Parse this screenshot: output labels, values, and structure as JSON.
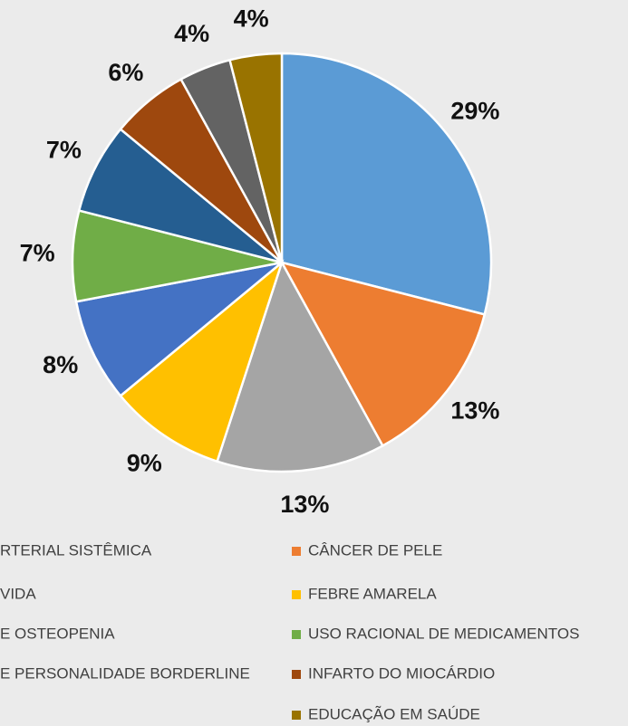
{
  "chart_data": {
    "type": "pie",
    "categories": [
      "RTERIAL SISTÊMICA",
      "CÂNCER DE PELE",
      "VIDA",
      "FEBRE AMARELA",
      "E OSTEOPENIA",
      "USO RACIONAL DE MEDICAMENTOS",
      "E PERSONALIDADE BORDERLINE",
      "INFARTO DO MIOCÁRDIO",
      null,
      "EDUCAÇÃO EM SAÚDE"
    ],
    "values": [
      29,
      13,
      13,
      9,
      8,
      7,
      7,
      6,
      4,
      4
    ],
    "value_labels": [
      "29%",
      "13%",
      "13%",
      "9%",
      "8%",
      "7%",
      "7%",
      "6%",
      "4%",
      "4%"
    ],
    "colors": [
      "#5b9bd5",
      "#ed7d31",
      "#a5a5a5",
      "#ffc000",
      "#4472c4",
      "#70ad47",
      "#255e91",
      "#9e480e",
      "#636363",
      "#997300"
    ]
  }
}
